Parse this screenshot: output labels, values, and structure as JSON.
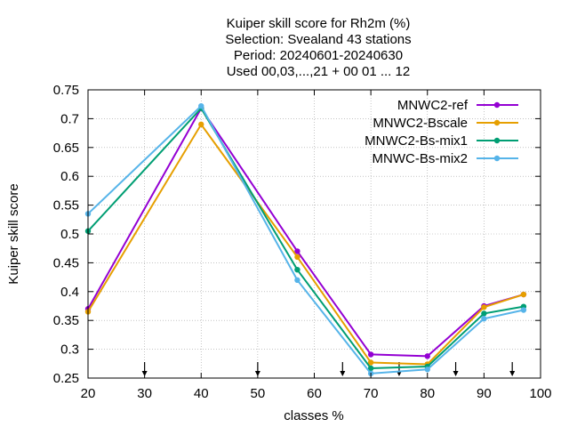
{
  "chart_data": {
    "type": "line",
    "title_lines": [
      "Kuiper skill score  for Rh2m (%)",
      "Selection: Svealand     43 stations",
      "Period: 20240601-20240630",
      "Used 00,03,...,21 + 00 01 ... 12"
    ],
    "xlabel": "classes %",
    "ylabel": "Kuiper skill score",
    "xlim": [
      20,
      100
    ],
    "ylim": [
      0.25,
      0.75
    ],
    "xticks": [
      20,
      30,
      40,
      50,
      60,
      70,
      80,
      90,
      100
    ],
    "xtick_labels": [
      "20",
      "30",
      "40",
      "50",
      "60",
      "70",
      "80",
      "90",
      "100"
    ],
    "yticks": [
      0.25,
      0.3,
      0.35,
      0.4,
      0.45,
      0.5,
      0.55,
      0.6,
      0.65,
      0.7,
      0.75
    ],
    "ytick_labels": [
      "0.25",
      "0.3",
      "0.35",
      "0.4",
      "0.45",
      "0.5",
      "0.55",
      "0.6",
      "0.65",
      "0.7",
      "0.75"
    ],
    "grid": true,
    "legend_position": "top-right",
    "arrow_markers_x": [
      30,
      50,
      65,
      75,
      85,
      95
    ],
    "series": [
      {
        "name": "MNWC2-ref",
        "color": "#9400d3",
        "x": [
          20,
          40,
          57,
          70,
          80,
          90,
          97
        ],
        "y": [
          0.37,
          0.718,
          0.47,
          0.291,
          0.288,
          0.375,
          0.395
        ]
      },
      {
        "name": "MNWC2-Bscale",
        "color": "#e69f00",
        "x": [
          20,
          40,
          57,
          70,
          80,
          90,
          97
        ],
        "y": [
          0.365,
          0.69,
          0.46,
          0.277,
          0.274,
          0.373,
          0.395
        ]
      },
      {
        "name": "MNWC2-Bs-mix1",
        "color": "#009e73",
        "x": [
          20,
          40,
          57,
          70,
          80,
          90,
          97
        ],
        "y": [
          0.505,
          0.718,
          0.438,
          0.267,
          0.27,
          0.362,
          0.374
        ]
      },
      {
        "name": "MNWC-Bs-mix2",
        "color": "#56b4e9",
        "x": [
          20,
          40,
          57,
          70,
          80,
          90,
          97
        ],
        "y": [
          0.535,
          0.722,
          0.42,
          0.258,
          0.265,
          0.353,
          0.368
        ]
      }
    ]
  }
}
